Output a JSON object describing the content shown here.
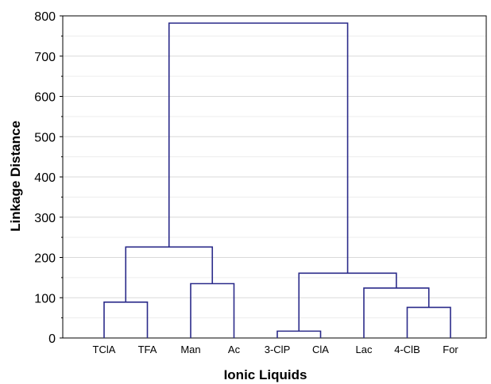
{
  "chart_data": {
    "type": "dendrogram",
    "title": "",
    "xlabel": "Ionic Liquids",
    "ylabel": "Linkage Distance",
    "ylim": [
      0,
      800
    ],
    "yticks": [
      0,
      100,
      200,
      300,
      400,
      500,
      600,
      700,
      800
    ],
    "grid": true,
    "leaves": [
      "TClA",
      "TFA",
      "Man",
      "Ac",
      "3-ClP",
      "ClA",
      "Lac",
      "4-ClB",
      "For"
    ],
    "merges": [
      {
        "left": "3-ClP",
        "right": "ClA",
        "distance": 17
      },
      {
        "left": "4-ClB",
        "right": "For",
        "distance": 76
      },
      {
        "left": "TClA",
        "right": "TFA",
        "distance": 89
      },
      {
        "left": "Lac",
        "right": "4-ClB+For",
        "distance": 124
      },
      {
        "left": "Man",
        "right": "Ac",
        "distance": 135
      },
      {
        "left": "3-ClP+ClA",
        "right": "Lac+4-ClB+For",
        "distance": 161
      },
      {
        "left": "TClA+TFA",
        "right": "Man+Ac",
        "distance": 226
      },
      {
        "left": "TClA+TFA+Man+Ac",
        "right": "3-ClP+ClA+Lac+4-ClB+For",
        "distance": 782
      }
    ],
    "colors": {
      "link": "#2b2b8a",
      "grid": "#d9d9d9",
      "frame": "#000000"
    }
  }
}
